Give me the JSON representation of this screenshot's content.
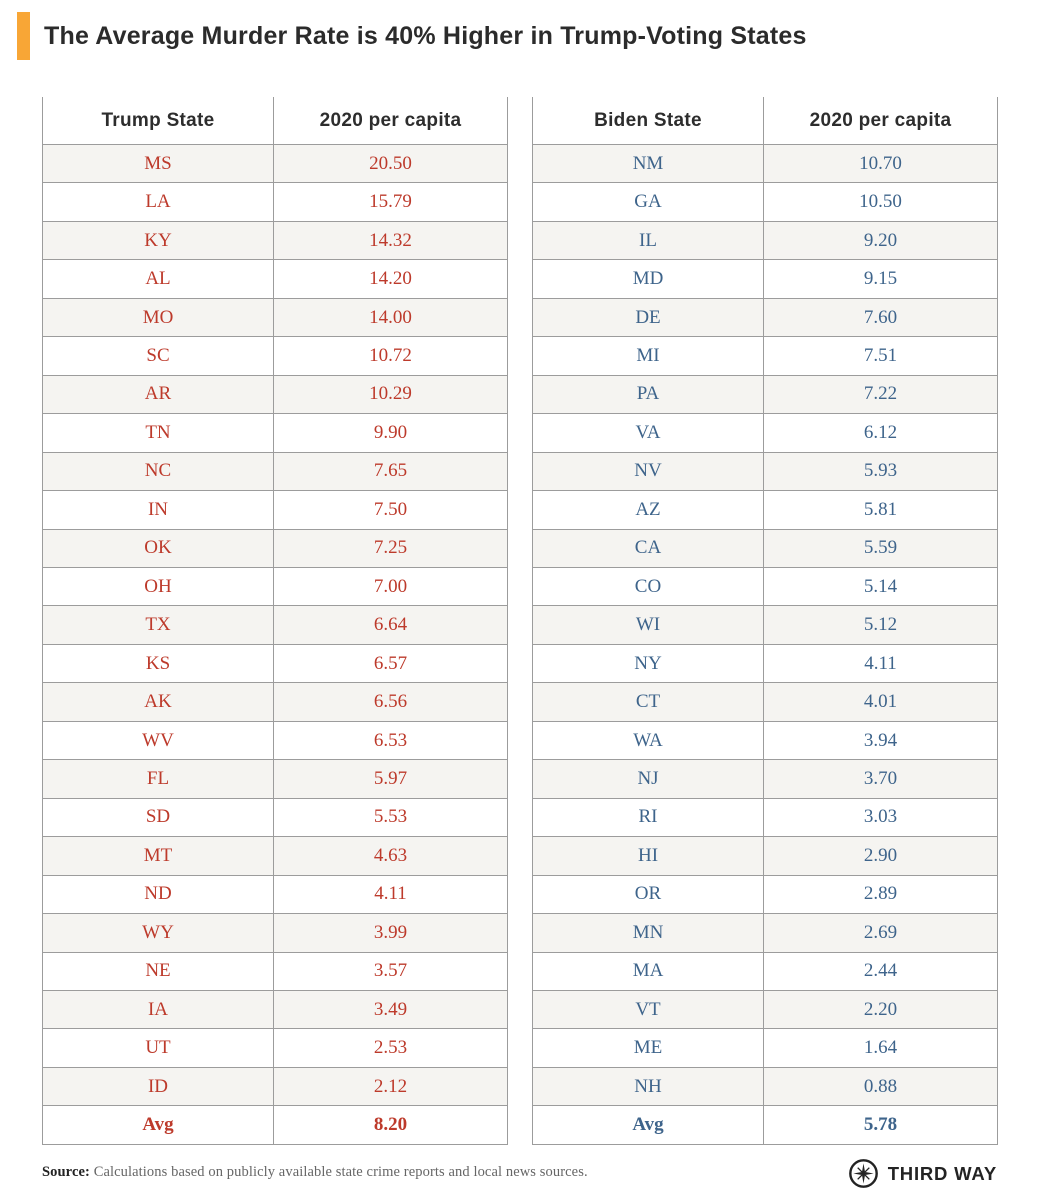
{
  "page": {
    "title": "The Average Murder Rate is 40% Higher in Trump-Voting States",
    "accent_color": "#F8A636"
  },
  "tables": [
    {
      "headers": [
        "Trump State",
        "2020 per capita"
      ],
      "avg_label": "Avg",
      "value_color": "#BD3A2B"
    },
    {
      "headers": [
        "Biden State",
        "2020 per capita"
      ],
      "avg_label": "Avg",
      "value_color": "#3E648B"
    }
  ],
  "footer": {
    "source_label": "Source:",
    "source_text": "Calculations based on publicly available state crime reports and local news sources.",
    "logo_text": "THIRD WAY"
  },
  "chart_data": [
    {
      "type": "table",
      "title": "The Average Murder Rate is 40% Higher in Trump-Voting States",
      "columns": [
        "Trump State",
        "2020 per capita"
      ],
      "rows": [
        [
          "MS",
          20.5
        ],
        [
          "LA",
          15.79
        ],
        [
          "KY",
          14.32
        ],
        [
          "AL",
          14.2
        ],
        [
          "MO",
          14.0
        ],
        [
          "SC",
          10.72
        ],
        [
          "AR",
          10.29
        ],
        [
          "TN",
          9.9
        ],
        [
          "NC",
          7.65
        ],
        [
          "IN",
          7.5
        ],
        [
          "OK",
          7.25
        ],
        [
          "OH",
          7.0
        ],
        [
          "TX",
          6.64
        ],
        [
          "KS",
          6.57
        ],
        [
          "AK",
          6.56
        ],
        [
          "WV",
          6.53
        ],
        [
          "FL",
          5.97
        ],
        [
          "SD",
          5.53
        ],
        [
          "MT",
          4.63
        ],
        [
          "ND",
          4.11
        ],
        [
          "WY",
          3.99
        ],
        [
          "NE",
          3.57
        ],
        [
          "IA",
          3.49
        ],
        [
          "UT",
          2.53
        ],
        [
          "ID",
          2.12
        ]
      ],
      "average": 8.2
    },
    {
      "type": "table",
      "columns": [
        "Biden State",
        "2020 per capita"
      ],
      "rows": [
        [
          "NM",
          10.7
        ],
        [
          "GA",
          10.5
        ],
        [
          "IL",
          9.2
        ],
        [
          "MD",
          9.15
        ],
        [
          "DE",
          7.6
        ],
        [
          "MI",
          7.51
        ],
        [
          "PA",
          7.22
        ],
        [
          "VA",
          6.12
        ],
        [
          "NV",
          5.93
        ],
        [
          "AZ",
          5.81
        ],
        [
          "CA",
          5.59
        ],
        [
          "CO",
          5.14
        ],
        [
          "WI",
          5.12
        ],
        [
          "NY",
          4.11
        ],
        [
          "CT",
          4.01
        ],
        [
          "WA",
          3.94
        ],
        [
          "NJ",
          3.7
        ],
        [
          "RI",
          3.03
        ],
        [
          "HI",
          2.9
        ],
        [
          "OR",
          2.89
        ],
        [
          "MN",
          2.69
        ],
        [
          "MA",
          2.44
        ],
        [
          "VT",
          2.2
        ],
        [
          "ME",
          1.64
        ],
        [
          "NH",
          0.88
        ]
      ],
      "average": 5.78
    }
  ]
}
